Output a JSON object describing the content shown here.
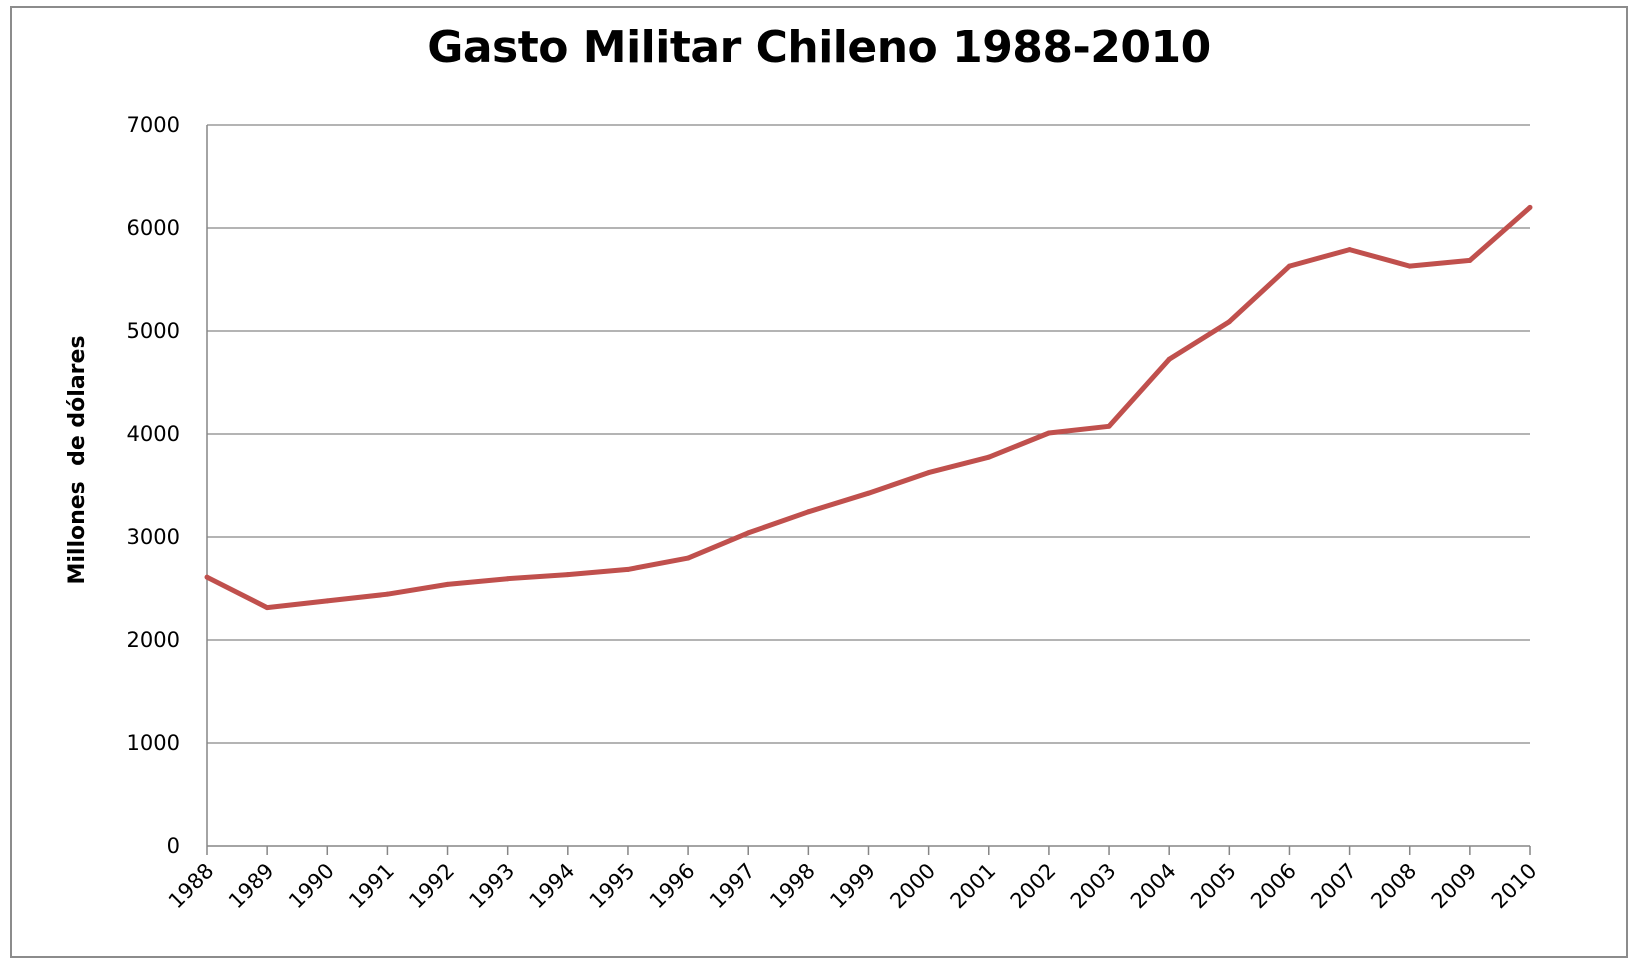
{
  "chart_data": {
    "type": "line",
    "title": "Gasto Militar Chileno 1988-2010",
    "xlabel": "",
    "ylabel": "Millones  de dólares",
    "ylim": [
      0,
      7000
    ],
    "yticks": [
      0,
      1000,
      2000,
      3000,
      4000,
      5000,
      6000,
      7000
    ],
    "grid": true,
    "categories": [
      "1988",
      "1989",
      "1990",
      "1991",
      "1992",
      "1993",
      "1994",
      "1995",
      "1996",
      "1997",
      "1998",
      "1999",
      "2000",
      "2001",
      "2002",
      "2003",
      "2004",
      "2005",
      "2006",
      "2007",
      "2008",
      "2009",
      "2010"
    ],
    "series": [
      {
        "values": [
          2610,
          2315,
          2380,
          2445,
          2540,
          2595,
          2635,
          2685,
          2795,
          3040,
          3245,
          3425,
          3625,
          3775,
          4010,
          4075,
          4725,
          5090,
          5630,
          5790,
          5630,
          5685,
          6200
        ],
        "color": "#c0504d"
      }
    ]
  }
}
